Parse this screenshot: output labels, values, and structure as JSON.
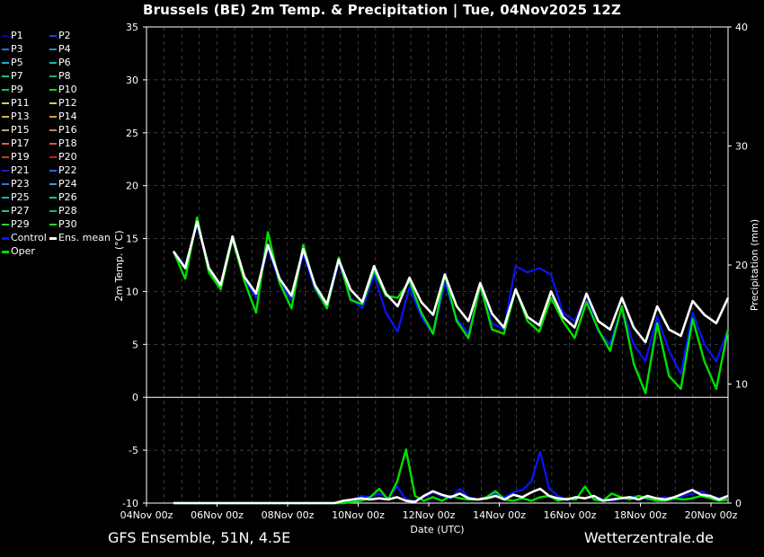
{
  "title": "Brussels  (BE)  2m Temp. & Precipitation | Tue, 04Nov2025 12Z",
  "footer": {
    "model": "GFS Ensemble, 51N, 4.5E",
    "site": "Wetterzentrale.de"
  },
  "chart_data": {
    "type": "line",
    "title": "Brussels  (BE)  2m Temp. & Precipitation | Tue, 04Nov2025 12Z",
    "xlabel": "Date (UTC)",
    "ylabel": "2m Temp. (°C)",
    "y2label": "Precipitation (mm)",
    "ylim": [
      -10,
      35
    ],
    "y2lim": [
      0,
      40
    ],
    "yticks": [
      "35",
      "30",
      "25",
      "20",
      "15",
      "10",
      "5",
      "0",
      "-5",
      "-10"
    ],
    "y2ticks": [
      "40",
      "30",
      "20",
      "10",
      "0"
    ],
    "xticks": [
      "04Nov 00z",
      "06Nov 00z",
      "08Nov 00z",
      "10Nov 00z",
      "12Nov 00z",
      "14Nov 00z",
      "16Nov 00z",
      "18Nov 00z",
      "20Nov 00z"
    ],
    "grid": true,
    "legend_position": "left",
    "legend": [
      {
        "name": "P1",
        "color": "#0000dd"
      },
      {
        "name": "P2",
        "color": "#1a3cff"
      },
      {
        "name": "P3",
        "color": "#2c70d6"
      },
      {
        "name": "P4",
        "color": "#2f8fc0"
      },
      {
        "name": "P5",
        "color": "#12b0d8"
      },
      {
        "name": "P6",
        "color": "#10bcaa"
      },
      {
        "name": "P7",
        "color": "#12c48a"
      },
      {
        "name": "P8",
        "color": "#14b86a"
      },
      {
        "name": "P9",
        "color": "#18c34e"
      },
      {
        "name": "P10",
        "color": "#14d414"
      },
      {
        "name": "P11",
        "color": "#c8d25a"
      },
      {
        "name": "P12",
        "color": "#d8c850"
      },
      {
        "name": "P13",
        "color": "#d8b446"
      },
      {
        "name": "P14",
        "color": "#d89c34"
      },
      {
        "name": "P15",
        "color": "#c8a07a"
      },
      {
        "name": "P16",
        "color": "#c4845a"
      },
      {
        "name": "P17",
        "color": "#d86a2a"
      },
      {
        "name": "P18",
        "color": "#d85a34"
      },
      {
        "name": "P19",
        "color": "#cc3a1c"
      },
      {
        "name": "P20",
        "color": "#c81c12"
      },
      {
        "name": "P21",
        "color": "#1a1ad0"
      },
      {
        "name": "P22",
        "color": "#2a64e0"
      },
      {
        "name": "P23",
        "color": "#3478d0"
      },
      {
        "name": "P24",
        "color": "#3a9ad8"
      },
      {
        "name": "P25",
        "color": "#14b4d0"
      },
      {
        "name": "P26",
        "color": "#14c0b0"
      },
      {
        "name": "P27",
        "color": "#16c88c"
      },
      {
        "name": "P28",
        "color": "#18b86c"
      },
      {
        "name": "P29",
        "color": "#22d056"
      },
      {
        "name": "P30",
        "color": "#18e018"
      },
      {
        "name": "Control",
        "color": "#0a14ff"
      },
      {
        "name": "Ens. mean",
        "color": "#ffffff"
      },
      {
        "name": "Oper",
        "color": "#00e000"
      }
    ],
    "series": [
      {
        "name": "Ens. mean",
        "color": "#ffffff",
        "t2m": [
          13.8,
          12.2,
          16.6,
          12.2,
          10.6,
          15.2,
          11.4,
          9.8,
          14.4,
          11.2,
          9.6,
          14.0,
          10.6,
          8.8,
          13.0,
          10.2,
          9.0,
          12.4,
          9.8,
          8.6,
          11.3,
          9.0,
          7.8,
          11.6,
          8.6,
          7.2,
          10.8,
          7.9,
          6.6,
          10.2,
          7.6,
          6.8,
          10.0,
          7.6,
          6.6,
          9.8,
          7.2,
          6.4,
          9.4,
          6.6,
          5.2,
          8.6,
          6.4,
          5.8,
          9.1,
          7.8,
          7.0,
          9.4
        ],
        "precip": [
          0,
          0,
          0,
          0,
          0,
          0,
          0,
          0,
          0,
          0,
          0,
          0,
          0,
          0,
          0,
          0,
          0,
          0,
          0,
          0.2,
          0.3,
          0.4,
          0.3,
          0.4,
          0.3,
          0.5,
          0.2,
          0.1,
          0.6,
          1.0,
          0.7,
          0.5,
          0.8,
          0.4,
          0.3,
          0.4,
          0.6,
          0.3,
          0.7,
          0.5,
          0.9,
          1.2,
          0.6,
          0.4,
          0.3,
          0.5,
          0.4,
          0.6,
          0.2,
          0.3,
          0.4,
          0.5,
          0.3,
          0.6,
          0.4,
          0.3,
          0.5,
          0.8,
          1.1,
          0.7,
          0.6,
          0.3,
          0.6
        ]
      },
      {
        "name": "Oper",
        "color": "#00e000",
        "t2m": [
          13.8,
          11.2,
          17.0,
          11.8,
          10.2,
          15.0,
          11.0,
          8.0,
          15.6,
          10.8,
          8.4,
          14.4,
          10.4,
          8.4,
          13.2,
          9.2,
          8.8,
          12.0,
          9.6,
          9.4,
          11.0,
          8.0,
          6.0,
          11.6,
          7.2,
          5.6,
          10.6,
          6.4,
          6.0,
          10.2,
          7.2,
          6.2,
          9.4,
          7.2,
          5.6,
          9.0,
          6.4,
          4.4,
          8.6,
          3.2,
          0.4,
          7.0,
          2.0,
          0.8,
          7.4,
          3.4,
          0.8,
          6.4
        ],
        "precip": [
          0,
          0,
          0,
          0,
          0,
          0,
          0,
          0,
          0,
          0,
          0,
          0,
          0,
          0,
          0,
          0,
          0,
          0,
          0,
          0,
          0.1,
          0.2,
          0.5,
          1.2,
          0.3,
          1.8,
          4.5,
          0.6,
          0.2,
          0.5,
          0.2,
          0.6,
          0.4,
          0.3,
          0.3,
          0.5,
          1.0,
          0.3,
          0.2,
          0.4,
          0.2,
          0.5,
          0.6,
          0.2,
          0.4,
          0.3,
          1.4,
          0.3,
          0.2,
          0.8,
          0.5,
          0.3,
          0.6,
          0.4,
          0.2,
          0.2,
          0.4,
          0.3,
          0.4,
          0.6,
          0.4,
          0.2,
          0.3
        ]
      },
      {
        "name": "Control",
        "color": "#0a14ff",
        "t2m": [
          13.8,
          12.4,
          16.4,
          12.2,
          10.2,
          15.2,
          11.2,
          9.4,
          14.2,
          10.8,
          9.2,
          13.6,
          10.2,
          8.4,
          12.8,
          9.4,
          8.4,
          11.6,
          8.0,
          6.2,
          10.4,
          7.6,
          6.0,
          10.8,
          7.4,
          6.0,
          10.4,
          7.0,
          6.4,
          12.4,
          11.8,
          12.2,
          11.6,
          8.0,
          7.2,
          9.6,
          6.2,
          5.0,
          8.4,
          5.0,
          3.4,
          7.6,
          4.4,
          2.2,
          8.0,
          5.0,
          3.4,
          6.4
        ],
        "precip": [
          0,
          0,
          0,
          0,
          0,
          0,
          0,
          0,
          0,
          0,
          0,
          0,
          0,
          0,
          0,
          0,
          0,
          0,
          0,
          0,
          0.3,
          0.6,
          0.5,
          0.8,
          0.4,
          1.4,
          0.3,
          0.2,
          0.5,
          0.9,
          0.6,
          0.4,
          1.2,
          0.5,
          0.3,
          0.4,
          0.8,
          0.5,
          0.9,
          1.1,
          1.8,
          4.3,
          1.2,
          0.6,
          0.3,
          0.5,
          0.4,
          0.6,
          0.3,
          0.2,
          0.4,
          0.5,
          0.6,
          0.3,
          0.4,
          0.5,
          0.3,
          0.6,
          0.8,
          1.0,
          0.6,
          0.4,
          0.5
        ]
      }
    ]
  }
}
